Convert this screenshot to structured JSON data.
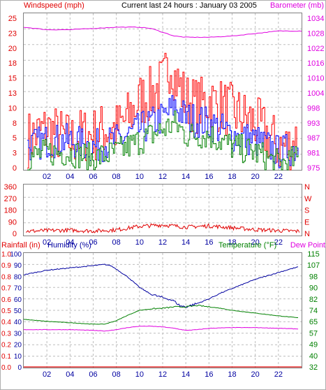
{
  "header": {
    "left": "Windspeed (mph)",
    "center": "Current last 24 hours : January 03 2005",
    "right": "Barometer (mb)"
  },
  "labels": {
    "rainfall": "Rainfall (in)",
    "humidity": "Humidity (%)",
    "temperature": "Temperature (°F)",
    "dewpoint": "Dew Point"
  },
  "colors": {
    "wind_gust": "#ff0000",
    "wind_avg": "#0000ff",
    "wind_min": "#008000",
    "barometer": "#e000e0",
    "direction": "#e00000",
    "rain": "#e00000",
    "humidity": "#0000a0",
    "temperature": "#008000",
    "dewpoint": "#e000e0",
    "grid": "#bdbdbd"
  },
  "chart_data": [
    {
      "type": "line",
      "title": "Windspeed (mph)",
      "x_ticks": [
        "02",
        "04",
        "06",
        "08",
        "10",
        "12",
        "14",
        "16",
        "18",
        "20",
        "22"
      ],
      "xlim": [
        0,
        24
      ],
      "y_ticks": [
        "0",
        "3",
        "5",
        "8",
        "10",
        "13",
        "15",
        "18",
        "20",
        "23",
        "25"
      ],
      "ylim": [
        0,
        27
      ],
      "y2_ticks": [
        "975",
        "981",
        "987",
        "993",
        "998",
        "1004",
        "1010",
        "1016",
        "1022",
        "1028",
        "1034"
      ],
      "y2lim": [
        974,
        1036
      ],
      "grid": true,
      "series": [
        {
          "name": "Windspeed (mph)",
          "axis": "left",
          "stroke": "red",
          "x": [
            0,
            1,
            2,
            3,
            4,
            5,
            6,
            7,
            8,
            9,
            10,
            11,
            12,
            12.7,
            13,
            14,
            15,
            16,
            17,
            18,
            19,
            20,
            21,
            22,
            23,
            23.8
          ],
          "values": [
            5,
            6,
            7,
            6,
            5,
            6,
            6,
            7,
            7,
            9,
            12,
            13,
            15,
            19,
            16,
            12,
            11,
            12,
            11,
            10,
            9,
            8,
            6,
            4,
            4,
            6
          ]
        },
        {
          "axis": "left",
          "stroke": "blue",
          "x": [
            0,
            2,
            4,
            6,
            8,
            10,
            12,
            13,
            14,
            16,
            18,
            20,
            22,
            23.8
          ],
          "values": [
            4,
            5,
            5,
            4,
            5,
            7,
            9,
            11,
            9,
            8,
            6,
            5,
            3,
            4
          ]
        },
        {
          "axis": "left",
          "stroke": "green",
          "x": [
            0,
            2,
            4,
            6,
            8,
            10,
            12,
            13,
            14,
            16,
            18,
            20,
            22,
            23.8
          ],
          "values": [
            2,
            3,
            3,
            2,
            3,
            5,
            7,
            8,
            6,
            6,
            4,
            3,
            1,
            2
          ]
        },
        {
          "name": "Barometer (mb)",
          "axis": "right",
          "x": [
            0,
            1,
            2,
            4,
            6,
            8,
            10,
            11,
            12,
            13,
            14,
            16,
            18,
            20,
            22,
            24
          ],
          "values": [
            1030.5,
            1030,
            1029.5,
            1029.5,
            1030,
            1030.5,
            1030.5,
            1030,
            1028.5,
            1027,
            1026.5,
            1026.5,
            1027,
            1028,
            1029,
            1029
          ]
        }
      ]
    },
    {
      "type": "line",
      "x_ticks": [
        "02",
        "04",
        "06",
        "08",
        "10",
        "12",
        "14",
        "16",
        "18",
        "20",
        "22"
      ],
      "xlim": [
        0,
        24
      ],
      "y_ticks": [
        "0",
        "90",
        "180",
        "270",
        "360"
      ],
      "ylim": [
        0,
        360
      ],
      "y2_ticks": [
        "N",
        "E",
        "S",
        "W",
        "N"
      ],
      "grid": true,
      "series": [
        {
          "axis": "left",
          "x": [
            0,
            2,
            4,
            6,
            8,
            10,
            12,
            14,
            16,
            18,
            20,
            22,
            23.8
          ],
          "values": [
            30,
            35,
            38,
            32,
            40,
            65,
            75,
            60,
            68,
            55,
            42,
            35,
            30
          ]
        }
      ]
    },
    {
      "type": "line",
      "x_ticks": [
        "02",
        "04",
        "06",
        "08",
        "10",
        "12",
        "14",
        "16",
        "18",
        "20",
        "22"
      ],
      "xlim": [
        0,
        24
      ],
      "y_ticks": [
        "0.0",
        "0.1",
        "0.2",
        "0.3",
        "0.4",
        "0.5",
        "0.6",
        "0.7",
        "0.8",
        "0.9",
        "1.0"
      ],
      "ylim": [
        0,
        1
      ],
      "y_ticks_inner": [
        "0",
        "10",
        "20",
        "30",
        "40",
        "50",
        "60",
        "70",
        "80",
        "90",
        "100"
      ],
      "y2_ticks": [
        "32",
        "40",
        "49",
        "57",
        "65",
        "74",
        "82",
        "90",
        "98",
        "107",
        "115"
      ],
      "y2lim": [
        32,
        115
      ],
      "grid": true,
      "series": [
        {
          "name": "Rainfall (in)",
          "axis": "left",
          "x": [
            0,
            24
          ],
          "values": [
            0,
            0
          ]
        },
        {
          "name": "Humidity (%)",
          "axis": "left",
          "x": [
            0,
            1,
            2,
            3,
            4,
            5,
            6,
            7,
            7.5,
            8,
            9,
            10,
            11,
            12,
            12.5,
            13,
            13.5,
            14,
            15,
            16,
            17,
            18,
            19,
            20,
            21,
            22,
            23,
            23.8
          ],
          "values": [
            81,
            83,
            85,
            86,
            87,
            88,
            89,
            90,
            89,
            86,
            79,
            70,
            64,
            61,
            60,
            58,
            54,
            53,
            56,
            60,
            65,
            69,
            73,
            77,
            80,
            83,
            86,
            88
          ]
        },
        {
          "name": "Temperature (°F)",
          "axis": "right",
          "x": [
            0,
            2,
            4,
            6,
            7,
            8,
            9,
            10,
            11,
            12,
            13,
            14,
            15,
            16,
            17,
            18,
            20,
            22,
            23.8
          ],
          "values": [
            67,
            65.5,
            64.5,
            63.5,
            63.5,
            66,
            70,
            73.5,
            74.5,
            75,
            76,
            76,
            77,
            76,
            75,
            73.5,
            71.5,
            69.5,
            68
          ]
        },
        {
          "name": "Dew Point",
          "axis": "right",
          "x": [
            0,
            2,
            4,
            6,
            7,
            8,
            9,
            10,
            11,
            12,
            13,
            14,
            15,
            16,
            18,
            20,
            22,
            23.8
          ],
          "values": [
            59.5,
            59.5,
            59.5,
            59,
            58.5,
            59.5,
            61,
            62,
            62,
            61.5,
            60.5,
            59,
            59.5,
            60.5,
            61,
            61,
            60.5,
            60
          ]
        }
      ]
    }
  ]
}
